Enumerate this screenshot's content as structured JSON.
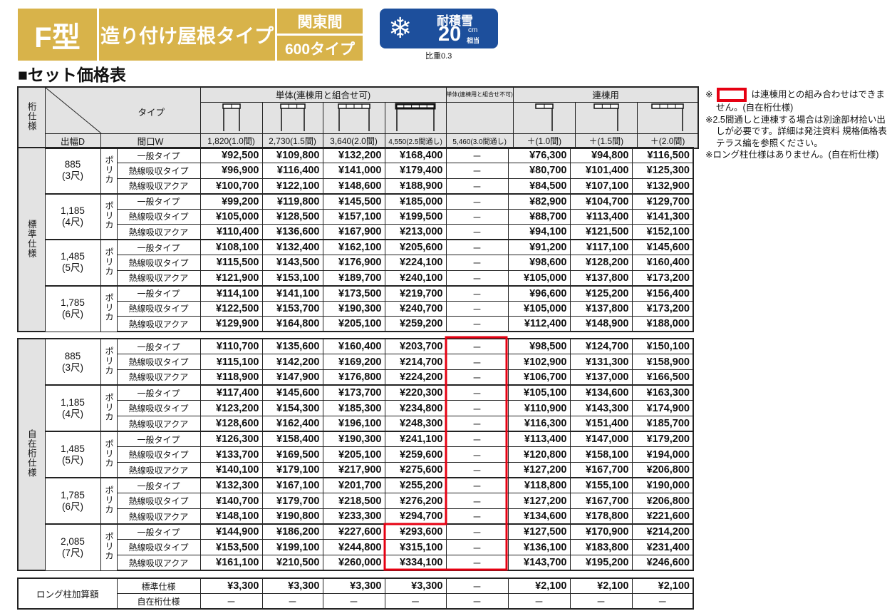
{
  "header": {
    "type": "F型",
    "roof": "造り付け屋根タイプ",
    "region": "関東間",
    "size": "600タイプ",
    "snow_label": "耐積雪",
    "snow_value": "20",
    "snow_unit": "cm",
    "snow_unit2": "相当",
    "ratio": "比重0.3",
    "snow_icon": "snowflake-icon"
  },
  "title": "■セット価格表",
  "table_header": {
    "spec": "桁仕様",
    "type": "タイプ",
    "depth": "出幅D",
    "width": "間口W",
    "group_single": "単体(連棟用と組合せ可)",
    "group_single_ng": "単体(連棟用と組合せ不可)",
    "group_linked": "連棟用",
    "columns": [
      "1,820(1.0間)",
      "2,730(1.5間)",
      "3,640(2.0間)",
      "4,550(2.5間通し)",
      "5,460(3.0間通し)",
      "＋(1.0間)",
      "＋(1.5間)",
      "＋(2.0間)"
    ]
  },
  "sections": [
    {
      "label": "標準仕様",
      "groups": [
        {
          "depth": "885",
          "shaku": "(3尺)",
          "material": "ポリカ",
          "rows": [
            {
              "type": "一般タイプ",
              "prices": [
                "¥92,500",
                "¥109,800",
                "¥132,200",
                "¥168,400",
                "－",
                "¥76,300",
                "¥94,800",
                "¥116,500"
              ]
            },
            {
              "type": "熱線吸収タイプ",
              "prices": [
                "¥96,900",
                "¥116,400",
                "¥141,000",
                "¥179,400",
                "－",
                "¥80,700",
                "¥101,400",
                "¥125,300"
              ]
            },
            {
              "type": "熱線吸収アクア",
              "prices": [
                "¥100,700",
                "¥122,100",
                "¥148,600",
                "¥188,900",
                "－",
                "¥84,500",
                "¥107,100",
                "¥132,900"
              ]
            }
          ]
        },
        {
          "depth": "1,185",
          "shaku": "(4尺)",
          "material": "ポリカ",
          "rows": [
            {
              "type": "一般タイプ",
              "prices": [
                "¥99,200",
                "¥119,800",
                "¥145,500",
                "¥185,000",
                "－",
                "¥82,900",
                "¥104,700",
                "¥129,700"
              ]
            },
            {
              "type": "熱線吸収タイプ",
              "prices": [
                "¥105,000",
                "¥128,500",
                "¥157,100",
                "¥199,500",
                "－",
                "¥88,700",
                "¥113,400",
                "¥141,300"
              ]
            },
            {
              "type": "熱線吸収アクア",
              "prices": [
                "¥110,400",
                "¥136,600",
                "¥167,900",
                "¥213,000",
                "－",
                "¥94,100",
                "¥121,500",
                "¥152,100"
              ]
            }
          ]
        },
        {
          "depth": "1,485",
          "shaku": "(5尺)",
          "material": "ポリカ",
          "rows": [
            {
              "type": "一般タイプ",
              "prices": [
                "¥108,100",
                "¥132,400",
                "¥162,100",
                "¥205,600",
                "－",
                "¥91,200",
                "¥117,100",
                "¥145,600"
              ]
            },
            {
              "type": "熱線吸収タイプ",
              "prices": [
                "¥115,500",
                "¥143,500",
                "¥176,900",
                "¥224,100",
                "－",
                "¥98,600",
                "¥128,200",
                "¥160,400"
              ]
            },
            {
              "type": "熱線吸収アクア",
              "prices": [
                "¥121,900",
                "¥153,100",
                "¥189,700",
                "¥240,100",
                "－",
                "¥105,000",
                "¥137,800",
                "¥173,200"
              ]
            }
          ]
        },
        {
          "depth": "1,785",
          "shaku": "(6尺)",
          "material": "ポリカ",
          "rows": [
            {
              "type": "一般タイプ",
              "prices": [
                "¥114,100",
                "¥141,100",
                "¥173,500",
                "¥219,700",
                "－",
                "¥96,600",
                "¥125,200",
                "¥156,400"
              ]
            },
            {
              "type": "熱線吸収タイプ",
              "prices": [
                "¥122,500",
                "¥153,700",
                "¥190,300",
                "¥240,700",
                "－",
                "¥105,000",
                "¥137,800",
                "¥173,200"
              ]
            },
            {
              "type": "熱線吸収アクア",
              "prices": [
                "¥129,900",
                "¥164,800",
                "¥205,100",
                "¥259,200",
                "－",
                "¥112,400",
                "¥148,900",
                "¥188,000"
              ]
            }
          ]
        }
      ]
    },
    {
      "label": "自在桁仕様",
      "groups": [
        {
          "depth": "885",
          "shaku": "(3尺)",
          "material": "ポリカ",
          "rows": [
            {
              "type": "一般タイプ",
              "prices": [
                "¥110,700",
                "¥135,600",
                "¥160,400",
                "¥203,700",
                "－",
                "¥98,500",
                "¥124,700",
                "¥150,100"
              ]
            },
            {
              "type": "熱線吸収タイプ",
              "prices": [
                "¥115,100",
                "¥142,200",
                "¥169,200",
                "¥214,700",
                "－",
                "¥102,900",
                "¥131,300",
                "¥158,900"
              ]
            },
            {
              "type": "熱線吸収アクア",
              "prices": [
                "¥118,900",
                "¥147,900",
                "¥176,800",
                "¥224,200",
                "－",
                "¥106,700",
                "¥137,000",
                "¥166,500"
              ]
            }
          ]
        },
        {
          "depth": "1,185",
          "shaku": "(4尺)",
          "material": "ポリカ",
          "rows": [
            {
              "type": "一般タイプ",
              "prices": [
                "¥117,400",
                "¥145,600",
                "¥173,700",
                "¥220,300",
                "－",
                "¥105,100",
                "¥134,600",
                "¥163,300"
              ]
            },
            {
              "type": "熱線吸収タイプ",
              "prices": [
                "¥123,200",
                "¥154,300",
                "¥185,300",
                "¥234,800",
                "－",
                "¥110,900",
                "¥143,300",
                "¥174,900"
              ]
            },
            {
              "type": "熱線吸収アクア",
              "prices": [
                "¥128,600",
                "¥162,400",
                "¥196,100",
                "¥248,300",
                "－",
                "¥116,300",
                "¥151,400",
                "¥185,700"
              ]
            }
          ]
        },
        {
          "depth": "1,485",
          "shaku": "(5尺)",
          "material": "ポリカ",
          "rows": [
            {
              "type": "一般タイプ",
              "prices": [
                "¥126,300",
                "¥158,400",
                "¥190,300",
                "¥241,100",
                "－",
                "¥113,400",
                "¥147,000",
                "¥179,200"
              ]
            },
            {
              "type": "熱線吸収タイプ",
              "prices": [
                "¥133,700",
                "¥169,500",
                "¥205,100",
                "¥259,600",
                "－",
                "¥120,800",
                "¥158,100",
                "¥194,000"
              ]
            },
            {
              "type": "熱線吸収アクア",
              "prices": [
                "¥140,100",
                "¥179,100",
                "¥217,900",
                "¥275,600",
                "－",
                "¥127,200",
                "¥167,700",
                "¥206,800"
              ]
            }
          ]
        },
        {
          "depth": "1,785",
          "shaku": "(6尺)",
          "material": "ポリカ",
          "rows": [
            {
              "type": "一般タイプ",
              "prices": [
                "¥132,300",
                "¥167,100",
                "¥201,700",
                "¥255,200",
                "－",
                "¥118,800",
                "¥155,100",
                "¥190,000"
              ]
            },
            {
              "type": "熱線吸収タイプ",
              "prices": [
                "¥140,700",
                "¥179,700",
                "¥218,500",
                "¥276,200",
                "－",
                "¥127,200",
                "¥167,700",
                "¥206,800"
              ]
            },
            {
              "type": "熱線吸収アクア",
              "prices": [
                "¥148,100",
                "¥190,800",
                "¥233,300",
                "¥294,700",
                "－",
                "¥134,600",
                "¥178,800",
                "¥221,600"
              ]
            }
          ]
        },
        {
          "depth": "2,085",
          "shaku": "(7尺)",
          "material": "ポリカ",
          "rows": [
            {
              "type": "一般タイプ",
              "prices": [
                "¥144,900",
                "¥186,200",
                "¥227,600",
                "¥293,600",
                "－",
                "¥127,500",
                "¥170,900",
                "¥214,200"
              ]
            },
            {
              "type": "熱線吸収タイプ",
              "prices": [
                "¥153,500",
                "¥199,100",
                "¥244,800",
                "¥315,100",
                "－",
                "¥136,100",
                "¥183,800",
                "¥231,400"
              ]
            },
            {
              "type": "熱線吸収アクア",
              "prices": [
                "¥161,100",
                "¥210,500",
                "¥260,000",
                "¥334,100",
                "－",
                "¥143,700",
                "¥195,200",
                "¥246,600"
              ]
            }
          ]
        }
      ]
    }
  ],
  "long_pillar": {
    "label": "ロング柱加算額",
    "rows": [
      {
        "type": "標準仕様",
        "prices": [
          "¥3,300",
          "¥3,300",
          "¥3,300",
          "¥3,300",
          "－",
          "¥2,100",
          "¥2,100",
          "¥2,100"
        ]
      },
      {
        "type": "自在桁仕様",
        "prices": [
          "－",
          "－",
          "－",
          "－",
          "－",
          "－",
          "－",
          "－"
        ]
      }
    ]
  },
  "notes": [
    {
      "mark": "※",
      "text": "は連棟用との組み合わせはできません。(自在桁仕様)"
    },
    {
      "mark": "※",
      "text": "2.5間通しと連棟する場合は別途部材拾い出しが必要です。詳細は発注資料 規格価格表 テラス編を参照ください。"
    },
    {
      "mark": "※",
      "text": "ロング柱仕様はありません。(自在桁仕様)"
    }
  ],
  "colors": {
    "gold": "#d8b34a",
    "blue": "#1d4f9c",
    "red": "#e60012",
    "gray": "#e3e3e3"
  }
}
